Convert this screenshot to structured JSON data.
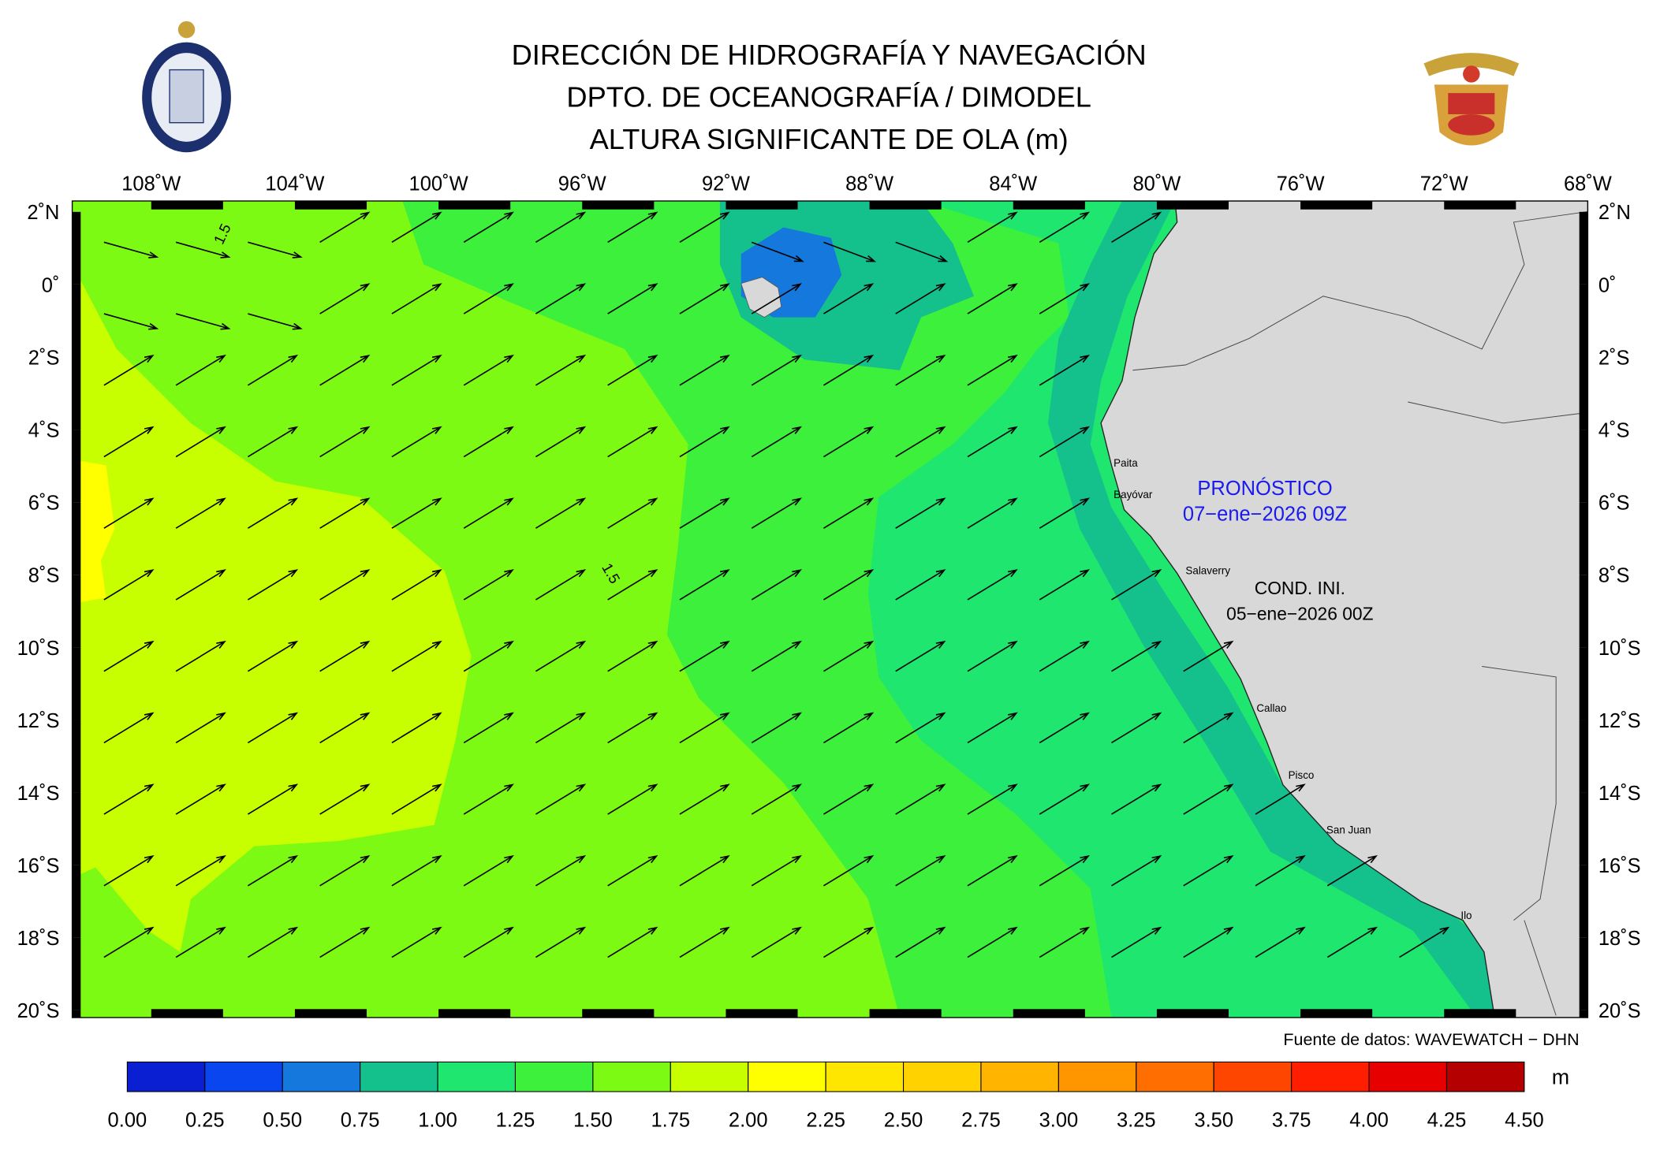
{
  "header": {
    "title_lines": [
      "DIRECCIÓN DE HIDROGRAFÍA Y NAVEGACIÓN",
      "DPTO. DE OCEANOGRAFÍA / DIMODEL",
      "ALTURA SIGNIFICANTE DE OLA (m)"
    ]
  },
  "map": {
    "lonlim": [
      -110.2,
      -68
    ],
    "latlim": [
      -20.2,
      2.3
    ],
    "lon_ticks": [
      {
        "value": -108,
        "label": "108˚W"
      },
      {
        "value": -104,
        "label": "104˚W"
      },
      {
        "value": -100,
        "label": "100˚W"
      },
      {
        "value": -96,
        "label": "96˚W"
      },
      {
        "value": -92,
        "label": "92˚W"
      },
      {
        "value": -88,
        "label": "88˚W"
      },
      {
        "value": -84,
        "label": "84˚W"
      },
      {
        "value": -80,
        "label": "80˚W"
      },
      {
        "value": -76,
        "label": "76˚W"
      },
      {
        "value": -72,
        "label": "72˚W"
      },
      {
        "value": -68,
        "label": "68˚W"
      }
    ],
    "lat_ticks": [
      {
        "value": 2,
        "label": "2˚N"
      },
      {
        "value": 0,
        "label": "0˚"
      },
      {
        "value": -2,
        "label": "2˚S"
      },
      {
        "value": -4,
        "label": "4˚S"
      },
      {
        "value": -6,
        "label": "6˚S"
      },
      {
        "value": -8,
        "label": "8˚S"
      },
      {
        "value": -10,
        "label": "10˚S"
      },
      {
        "value": -12,
        "label": "12˚S"
      },
      {
        "value": -14,
        "label": "14˚S"
      },
      {
        "value": -16,
        "label": "16˚S"
      },
      {
        "value": -18,
        "label": "18˚S"
      },
      {
        "value": -20,
        "label": "20˚S"
      }
    ],
    "contour_labels": [
      "1.5",
      "1.5"
    ],
    "places": [
      "Paita",
      "Bayóvar",
      "Salaverry",
      "Callao",
      "Pisco",
      "San Juan",
      "Ilo"
    ],
    "forecast": {
      "label": "PRONÓSTICO",
      "time": "07−ene−2026 09Z"
    },
    "init": {
      "label": "COND. INI.",
      "time": "05−ene−2026 00Z"
    },
    "source": "Fuente de datos: WAVEWATCH − DHN"
  },
  "colorbar": {
    "unit": "m",
    "colors": [
      "#0a1ed2",
      "#0a46f0",
      "#1478dc",
      "#14c08c",
      "#1ee66e",
      "#3cf03c",
      "#7dfa14",
      "#c8ff00",
      "#ffff00",
      "#ffe600",
      "#ffd200",
      "#ffb400",
      "#ff9600",
      "#ff6e00",
      "#ff4600",
      "#ff1e00",
      "#e60000",
      "#b40000"
    ],
    "ticks": [
      {
        "value": 0,
        "label": "0.00"
      },
      {
        "value": 0.25,
        "label": "0.25"
      },
      {
        "value": 0.5,
        "label": "0.50"
      },
      {
        "value": 0.75,
        "label": "0.75"
      },
      {
        "value": 1,
        "label": "1.00"
      },
      {
        "value": 1.25,
        "label": "1.25"
      },
      {
        "value": 1.5,
        "label": "1.50"
      },
      {
        "value": 1.75,
        "label": "1.75"
      },
      {
        "value": 2,
        "label": "2.00"
      },
      {
        "value": 2.25,
        "label": "2.25"
      },
      {
        "value": 2.5,
        "label": "2.50"
      },
      {
        "value": 2.75,
        "label": "2.75"
      },
      {
        "value": 3,
        "label": "3.00"
      },
      {
        "value": 3.25,
        "label": "3.25"
      },
      {
        "value": 3.5,
        "label": "3.50"
      },
      {
        "value": 3.75,
        "label": "3.75"
      },
      {
        "value": 4,
        "label": "4.00"
      },
      {
        "value": 4.25,
        "label": "4.25"
      },
      {
        "value": 4.5,
        "label": "4.50"
      }
    ]
  }
}
